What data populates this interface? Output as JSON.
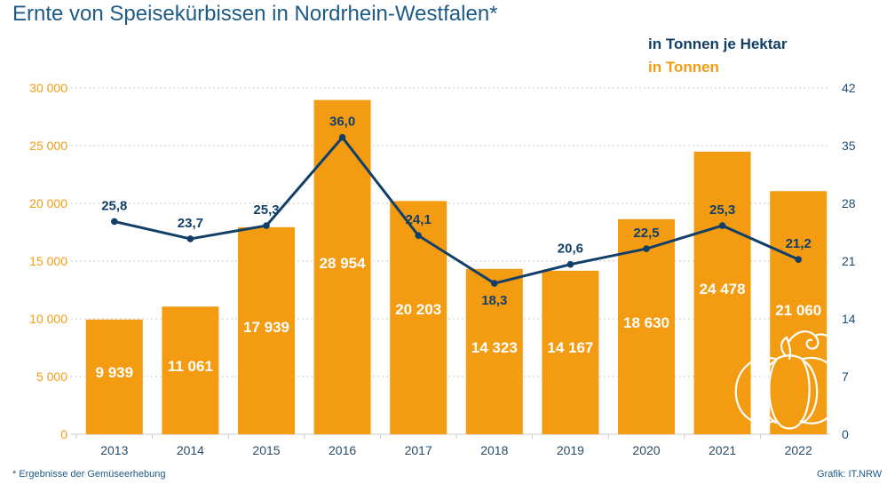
{
  "header": {
    "title": "Ernte von Speisekürbissen in Nordrhein-Westfalen*",
    "legend_line": "in Tonnen je Hektar",
    "legend_bar": "in Tonnen"
  },
  "footer": {
    "footnote": "*  Ergebnisse der Gemüseerhebung",
    "source": "Grafik: IT.NRW"
  },
  "colors": {
    "bar": "#f39c12",
    "line": "#123f68",
    "title": "#1d5a86",
    "grid": "#c9c9c9"
  },
  "icons": {
    "decoration": "pumpkin-icon"
  },
  "chart_data": {
    "type": "bar",
    "categories": [
      "2013",
      "2014",
      "2015",
      "2016",
      "2017",
      "2018",
      "2019",
      "2020",
      "2021",
      "2022"
    ],
    "series": [
      {
        "name": "in Tonnen",
        "type": "bar",
        "axis": "left",
        "values": [
          9939,
          11061,
          17939,
          28954,
          20203,
          14323,
          14167,
          18630,
          24478,
          21060
        ],
        "labels": [
          "9 939",
          "11 061",
          "17 939",
          "28 954",
          "20 203",
          "14 323",
          "14 167",
          "18 630",
          "24 478",
          "21 060"
        ]
      },
      {
        "name": "in Tonnen je Hektar",
        "type": "line",
        "axis": "right",
        "values": [
          25.8,
          23.7,
          25.3,
          36.0,
          24.1,
          18.3,
          20.6,
          22.5,
          25.3,
          21.2
        ],
        "labels": [
          "25,8",
          "23,7",
          "25,3",
          "36,0",
          "24,1",
          "18,3",
          "20,6",
          "22,5",
          "25,3",
          "21,2"
        ]
      }
    ],
    "y_left": {
      "ylim": [
        0,
        30000
      ],
      "ticks": [
        0,
        5000,
        10000,
        15000,
        20000,
        25000,
        30000
      ],
      "tick_labels": [
        "0",
        "5 000",
        "10 000",
        "15 000",
        "20 000",
        "25 000",
        "30 000"
      ]
    },
    "y_right": {
      "ylim": [
        0,
        42
      ],
      "ticks": [
        0,
        7,
        14,
        21,
        28,
        35,
        42
      ],
      "tick_labels": [
        "0",
        "7",
        "14",
        "21",
        "28",
        "35",
        "42"
      ]
    },
    "grid": true,
    "legend_position": "top-right"
  }
}
